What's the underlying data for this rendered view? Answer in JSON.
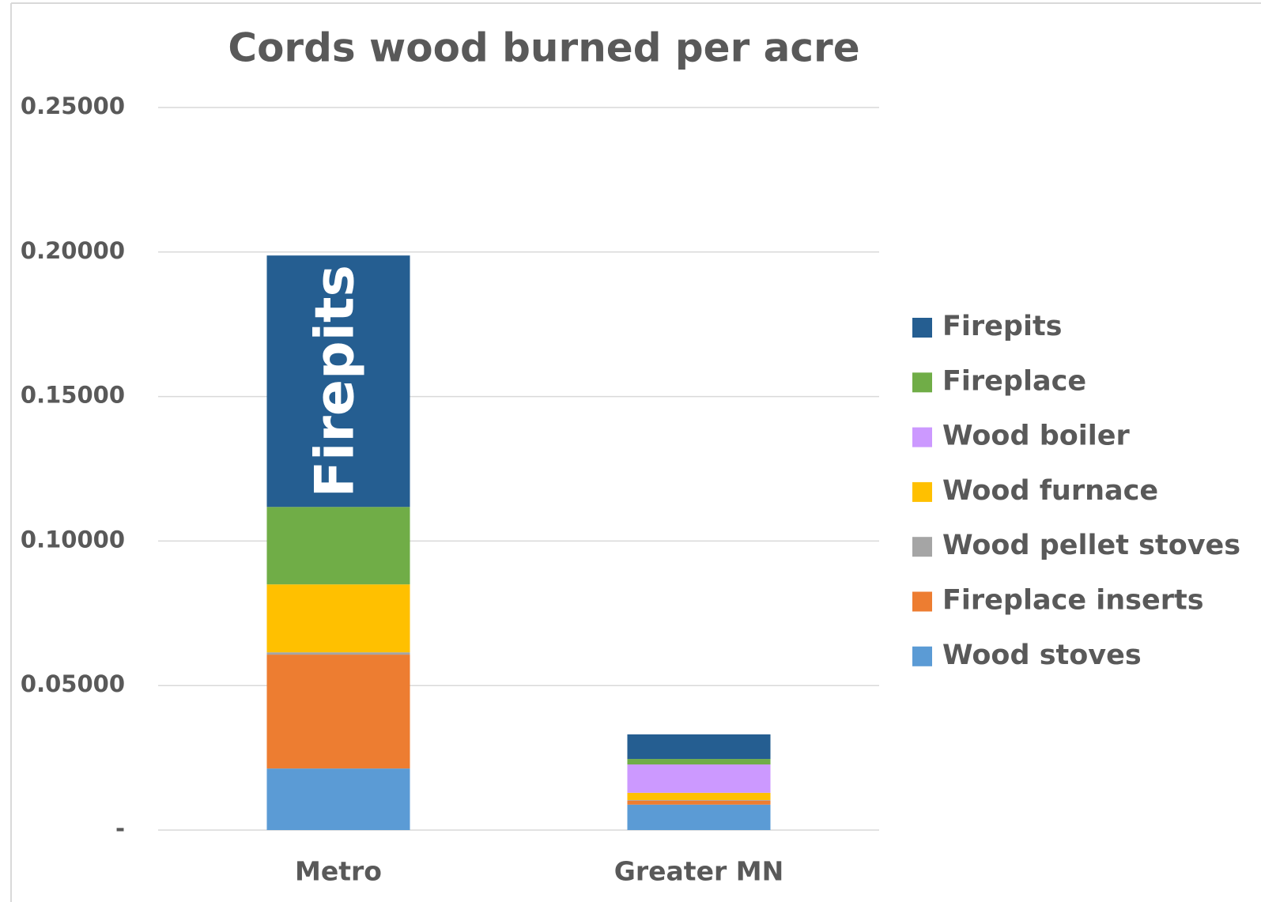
{
  "chart_data": {
    "type": "stacked_bar",
    "title": "Cords wood burned per acre",
    "categories": [
      "Metro",
      "Greater MN"
    ],
    "series": [
      {
        "name": "Wood stoves",
        "color": "#5b9bd5",
        "values": [
          0.0213,
          0.0088
        ]
      },
      {
        "name": "Fireplace inserts",
        "color": "#ed7d31",
        "values": [
          0.0394,
          0.0014
        ]
      },
      {
        "name": "Wood pellet stoves",
        "color": "#a5a5a5",
        "values": [
          0.0008,
          0.0002
        ]
      },
      {
        "name": "Wood furnace",
        "color": "#ffc000",
        "values": [
          0.0235,
          0.0025
        ]
      },
      {
        "name": "Wood boiler",
        "color": "#cc99ff",
        "values": [
          0,
          0.0098
        ]
      },
      {
        "name": "Fireplace",
        "color": "#70ad47",
        "values": [
          0.0268,
          0.0019
        ]
      },
      {
        "name": "Firepits",
        "color": "#255e91",
        "values": [
          0.087,
          0.0085
        ]
      }
    ],
    "annotation": "Firepits",
    "ylim": [
      0,
      0.25
    ],
    "yticks": [
      {
        "value": 0,
        "label": "-"
      },
      {
        "value": 0.05,
        "label": "0.05000"
      },
      {
        "value": 0.1,
        "label": "0.10000"
      },
      {
        "value": 0.15,
        "label": "0.15000"
      },
      {
        "value": 0.2,
        "label": "0.20000"
      },
      {
        "value": 0.25,
        "label": "0.25000"
      }
    ],
    "grid": true,
    "legend": "right"
  }
}
